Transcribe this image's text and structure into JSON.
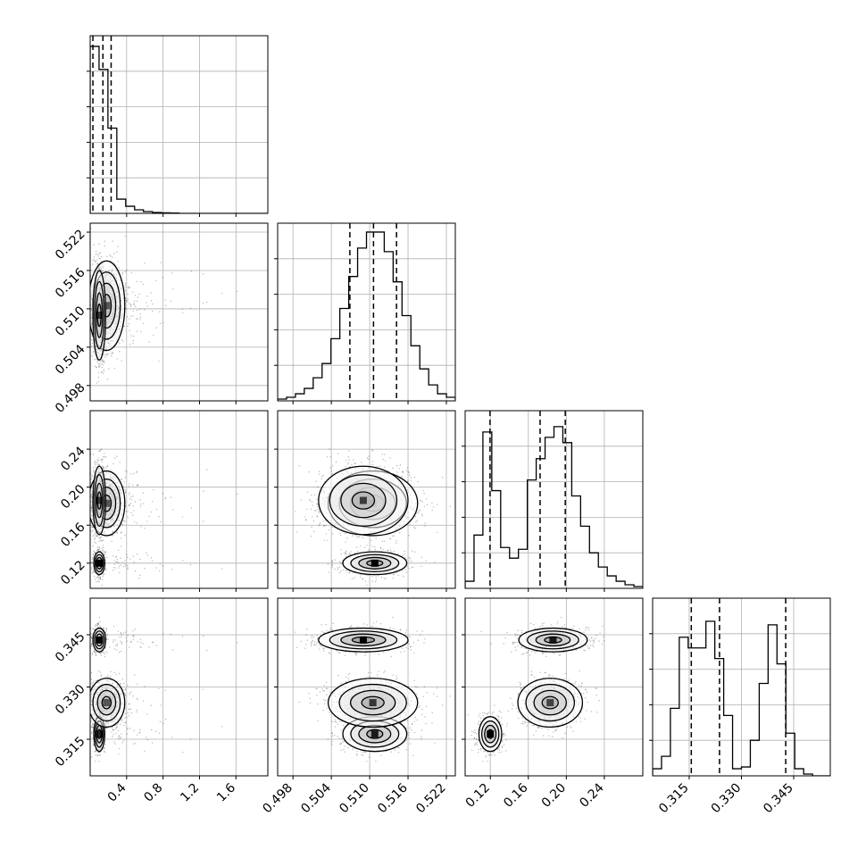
{
  "chart_data": {
    "type": "corner",
    "title": "",
    "grid": true,
    "params": [
      {
        "range": [
          0.0,
          1.95
        ],
        "ticks": [
          {
            "v": 0.4,
            "label": "0.4"
          },
          {
            "v": 0.8,
            "label": "0.8"
          },
          {
            "v": 1.2,
            "label": "1.2"
          },
          {
            "v": 1.6,
            "label": "1.6"
          }
        ],
        "quantiles": [
          0.03,
          0.14,
          0.23
        ],
        "histogram": [
          0.94,
          0.81,
          0.48,
          0.08,
          0.04,
          0.02,
          0.01,
          0.005,
          0.003,
          0.002,
          0,
          0,
          0,
          0,
          0,
          0,
          0,
          0,
          0,
          0
        ]
      },
      {
        "range": [
          0.4956,
          0.5234
        ],
        "ticks": [
          {
            "v": 0.498,
            "label": "0.498"
          },
          {
            "v": 0.504,
            "label": "0.504"
          },
          {
            "v": 0.51,
            "label": "0.510"
          },
          {
            "v": 0.516,
            "label": "0.516"
          },
          {
            "v": 0.522,
            "label": "0.522"
          }
        ],
        "quantiles": [
          0.5069,
          0.5106,
          0.5142
        ],
        "histogram": [
          0.01,
          0.02,
          0.04,
          0.07,
          0.13,
          0.21,
          0.35,
          0.52,
          0.7,
          0.86,
          0.95,
          0.95,
          0.84,
          0.67,
          0.48,
          0.31,
          0.18,
          0.09,
          0.04,
          0.02
        ]
      },
      {
        "range": [
          0.0935,
          0.2805
        ],
        "ticks": [
          {
            "v": 0.12,
            "label": "0.12"
          },
          {
            "v": 0.16,
            "label": "0.16"
          },
          {
            "v": 0.2,
            "label": "0.20"
          },
          {
            "v": 0.24,
            "label": "0.24"
          }
        ],
        "quantiles": [
          0.1197,
          0.1724,
          0.1989
        ],
        "histogram": [
          0.04,
          0.3,
          0.88,
          0.55,
          0.23,
          0.17,
          0.22,
          0.61,
          0.73,
          0.85,
          0.91,
          0.82,
          0.52,
          0.35,
          0.2,
          0.12,
          0.07,
          0.04,
          0.02,
          0.01
        ]
      },
      {
        "range": [
          0.3045,
          0.3555
        ],
        "ticks": [
          {
            "v": 0.315,
            "label": "0.315"
          },
          {
            "v": 0.33,
            "label": "0.330"
          },
          {
            "v": 0.345,
            "label": "0.345"
          }
        ],
        "quantiles": [
          0.3156,
          0.3237,
          0.3427
        ],
        "histogram": [
          0.04,
          0.11,
          0.38,
          0.78,
          0.72,
          0.72,
          0.87,
          0.66,
          0.34,
          0.04,
          0.05,
          0.2,
          0.52,
          0.85,
          0.63,
          0.24,
          0.04,
          0.01,
          0,
          0
        ]
      }
    ],
    "modes": [
      {
        "mean": [
          0.1,
          0.5108,
          0.12,
          0.3165
        ],
        "sd": [
          0.03,
          0.0025,
          0.006,
          0.0025
        ],
        "weight": 0.28
      },
      {
        "mean": [
          0.18,
          0.5105,
          0.183,
          0.3255
        ],
        "sd": [
          0.1,
          0.0035,
          0.017,
          0.0035
        ],
        "weight": 0.32
      },
      {
        "mean": [
          0.1,
          0.509,
          0.186,
          0.3435
        ],
        "sd": [
          0.035,
          0.0035,
          0.018,
          0.0017
        ],
        "weight": 0.4
      }
    ]
  }
}
